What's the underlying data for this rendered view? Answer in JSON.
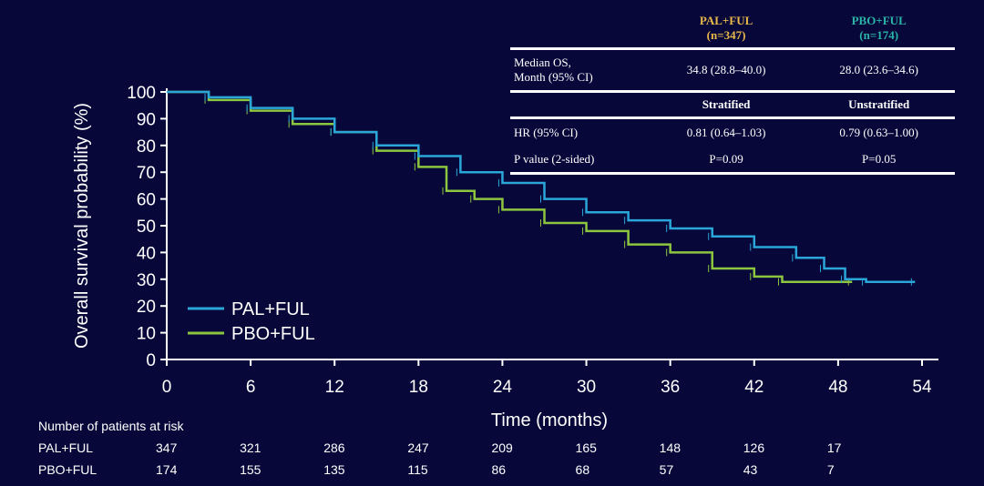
{
  "chart_data": {
    "type": "line",
    "xlabel": "Time (months)",
    "ylabel": "Overall survival probability (%)",
    "xlim": [
      0,
      54
    ],
    "ylim": [
      0,
      100
    ],
    "xticks": [
      0,
      6,
      12,
      18,
      24,
      30,
      36,
      42,
      48,
      54
    ],
    "yticks": [
      0,
      10,
      20,
      30,
      40,
      50,
      60,
      70,
      80,
      90,
      100
    ],
    "grid": false,
    "legend_placement": "bottom-left",
    "series": [
      {
        "name": "PAL+FUL",
        "color": "#2aa6d9",
        "x": [
          0,
          3,
          6,
          9,
          12,
          15,
          18,
          21,
          24,
          27,
          30,
          33,
          36,
          39,
          42,
          45,
          47,
          48.5,
          50,
          53.5
        ],
        "y": [
          100,
          98,
          94,
          90,
          85,
          80,
          76,
          70,
          66,
          60,
          55,
          52,
          49,
          46,
          42,
          38,
          34,
          30,
          29,
          29
        ]
      },
      {
        "name": "PBO+FUL",
        "color": "#8cc63e",
        "x": [
          0,
          3,
          6,
          9,
          12,
          15,
          18,
          20,
          22,
          24,
          27,
          30,
          33,
          36,
          39,
          42,
          44,
          49
        ],
        "y": [
          100,
          97,
          93,
          88,
          85,
          78,
          72,
          63,
          60,
          56,
          51,
          48,
          43,
          40,
          34,
          31,
          29,
          29
        ]
      }
    ]
  },
  "table": {
    "header": {
      "col1": "PAL+FUL",
      "col1_n": "(n=347)",
      "col2": "PBO+FUL",
      "col2_n": "(n=174)",
      "col1_color": "#e8b84a",
      "col2_color": "#2bb5a8"
    },
    "median_label_1": "Median OS,",
    "median_label_2": "Month (95% CI)",
    "median_1": "34.8 (28.8–40.0)",
    "median_2": "28.0 (23.6–34.6)",
    "sub_1": "Stratified",
    "sub_2": "Unstratified",
    "hr_label": "HR (95% CI)",
    "hr_1": "0.81 (0.64–1.03)",
    "hr_2": "0.79 (0.63–1.00)",
    "p_label": "P value (2-sided)",
    "p_1": "P=0.09",
    "p_2": "P=0.05"
  },
  "risk": {
    "title": "Number of patients at risk",
    "rows": [
      {
        "label": "PAL+FUL",
        "values": [
          "347",
          "321",
          "286",
          "247",
          "209",
          "165",
          "148",
          "126",
          "17"
        ]
      },
      {
        "label": "PBO+FUL",
        "values": [
          "174",
          "155",
          "135",
          "115",
          "86",
          "68",
          "57",
          "43",
          "7"
        ]
      }
    ]
  }
}
